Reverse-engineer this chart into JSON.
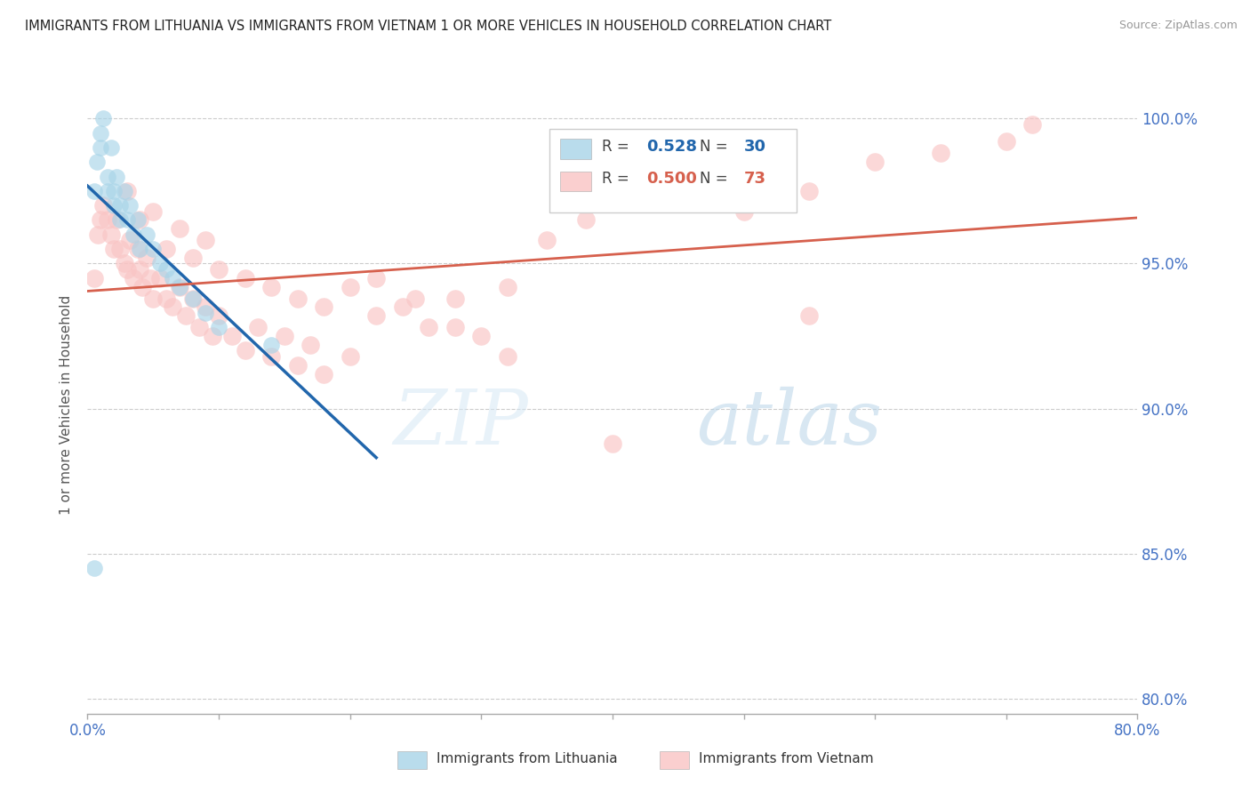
{
  "title": "IMMIGRANTS FROM LITHUANIA VS IMMIGRANTS FROM VIETNAM 1 OR MORE VEHICLES IN HOUSEHOLD CORRELATION CHART",
  "source": "Source: ZipAtlas.com",
  "ylabel": "1 or more Vehicles in Household",
  "watermark_zip": "ZIP",
  "watermark_atlas": "atlas",
  "blue_color": "#92c5de",
  "pink_color": "#f4a582",
  "blue_fill": "#a8d4e8",
  "pink_fill": "#f9c4c4",
  "blue_line_color": "#2166ac",
  "pink_line_color": "#d6604d",
  "background_color": "#ffffff",
  "grid_color": "#cccccc",
  "title_color": "#222222",
  "axis_label_color": "#4472c4",
  "xlim": [
    0.0,
    0.8
  ],
  "ylim": [
    0.795,
    1.008
  ],
  "yticks": [
    0.8,
    0.85,
    0.9,
    0.95,
    1.0
  ],
  "xticks": [
    0.0,
    0.1,
    0.2,
    0.3,
    0.4,
    0.5,
    0.6,
    0.7,
    0.8
  ],
  "legend_blue_r": "0.528",
  "legend_blue_n": "30",
  "legend_pink_r": "0.500",
  "legend_pink_n": "73",
  "lithuania_x": [
    0.005,
    0.007,
    0.01,
    0.01,
    0.012,
    0.015,
    0.015,
    0.018,
    0.02,
    0.02,
    0.022,
    0.025,
    0.025,
    0.028,
    0.03,
    0.032,
    0.035,
    0.038,
    0.04,
    0.045,
    0.05,
    0.055,
    0.06,
    0.065,
    0.07,
    0.08,
    0.09,
    0.1,
    0.14,
    0.005
  ],
  "lithuania_y": [
    0.975,
    0.985,
    0.99,
    0.995,
    1.0,
    0.98,
    0.975,
    0.99,
    0.975,
    0.97,
    0.98,
    0.97,
    0.965,
    0.975,
    0.965,
    0.97,
    0.96,
    0.965,
    0.955,
    0.96,
    0.955,
    0.95,
    0.948,
    0.945,
    0.942,
    0.938,
    0.933,
    0.928,
    0.922,
    0.845
  ],
  "vietnam_x": [
    0.005,
    0.008,
    0.01,
    0.012,
    0.015,
    0.018,
    0.02,
    0.022,
    0.025,
    0.028,
    0.03,
    0.032,
    0.035,
    0.038,
    0.04,
    0.042,
    0.045,
    0.048,
    0.05,
    0.055,
    0.06,
    0.065,
    0.07,
    0.075,
    0.08,
    0.085,
    0.09,
    0.095,
    0.1,
    0.11,
    0.12,
    0.13,
    0.14,
    0.15,
    0.16,
    0.17,
    0.18,
    0.2,
    0.22,
    0.24,
    0.26,
    0.28,
    0.3,
    0.32,
    0.35,
    0.38,
    0.42,
    0.46,
    0.5,
    0.55,
    0.6,
    0.65,
    0.7,
    0.72,
    0.03,
    0.04,
    0.05,
    0.06,
    0.07,
    0.08,
    0.09,
    0.1,
    0.12,
    0.14,
    0.16,
    0.18,
    0.2,
    0.22,
    0.25,
    0.28,
    0.32,
    0.4,
    0.55
  ],
  "vietnam_y": [
    0.945,
    0.96,
    0.965,
    0.97,
    0.965,
    0.96,
    0.955,
    0.965,
    0.955,
    0.95,
    0.948,
    0.958,
    0.945,
    0.955,
    0.948,
    0.942,
    0.952,
    0.945,
    0.938,
    0.945,
    0.938,
    0.935,
    0.942,
    0.932,
    0.938,
    0.928,
    0.935,
    0.925,
    0.932,
    0.925,
    0.92,
    0.928,
    0.918,
    0.925,
    0.915,
    0.922,
    0.912,
    0.918,
    0.945,
    0.935,
    0.928,
    0.938,
    0.925,
    0.942,
    0.958,
    0.965,
    0.972,
    0.978,
    0.968,
    0.975,
    0.985,
    0.988,
    0.992,
    0.998,
    0.975,
    0.965,
    0.968,
    0.955,
    0.962,
    0.952,
    0.958,
    0.948,
    0.945,
    0.942,
    0.938,
    0.935,
    0.942,
    0.932,
    0.938,
    0.928,
    0.918,
    0.888,
    0.932
  ]
}
